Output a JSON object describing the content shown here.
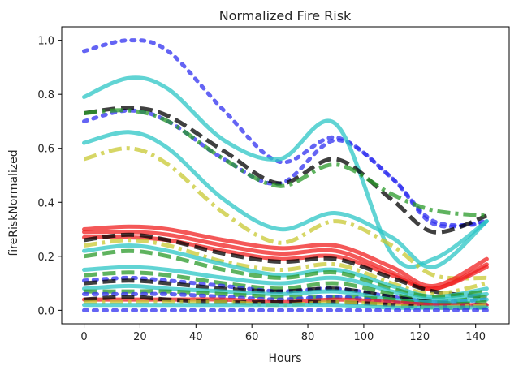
{
  "chart_data": {
    "type": "line",
    "title": "Normalized Fire Risk",
    "xlabel": "Hours",
    "ylabel": "fireRiskNormalized",
    "xlim": [
      -8,
      152
    ],
    "ylim": [
      -0.05,
      1.05
    ],
    "xticks": [
      0,
      20,
      40,
      60,
      80,
      100,
      120,
      140
    ],
    "yticks": [
      0.0,
      0.2,
      0.4,
      0.6,
      0.8,
      1.0
    ],
    "xtick_labels": [
      "0",
      "20",
      "40",
      "60",
      "80",
      "100",
      "120",
      "140"
    ],
    "ytick_labels": [
      "0.0",
      "0.2",
      "0.4",
      "0.6",
      "0.8",
      "1.0"
    ],
    "legend": false,
    "grid": false,
    "x": [
      0,
      16,
      30,
      50,
      70,
      90,
      110,
      125,
      144
    ],
    "series": [
      {
        "style": "dotted",
        "color": "#3030f0",
        "values": [
          0.96,
          1.0,
          0.96,
          0.74,
          0.55,
          0.64,
          0.49,
          0.33,
          0.32
        ]
      },
      {
        "style": "dotted",
        "color": "#3030f0",
        "values": [
          0.7,
          0.74,
          0.7,
          0.56,
          0.47,
          0.63,
          0.49,
          0.32,
          0.33
        ]
      },
      {
        "style": "solid",
        "color": "#2cc6c6",
        "values": [
          0.79,
          0.86,
          0.82,
          0.63,
          0.56,
          0.69,
          0.21,
          0.19,
          0.33
        ]
      },
      {
        "style": "solid",
        "color": "#2cc6c6",
        "values": [
          0.62,
          0.66,
          0.6,
          0.41,
          0.3,
          0.36,
          0.27,
          0.16,
          0.33
        ]
      },
      {
        "style": "dashed",
        "color": "#000000",
        "values": [
          0.73,
          0.75,
          0.72,
          0.59,
          0.47,
          0.56,
          0.41,
          0.29,
          0.35
        ]
      },
      {
        "style": "dashdot",
        "color": "#2a9a2a",
        "values": [
          0.73,
          0.74,
          0.7,
          0.56,
          0.46,
          0.54,
          0.43,
          0.37,
          0.35
        ]
      },
      {
        "style": "dashdot",
        "color": "#c8c832",
        "values": [
          0.56,
          0.6,
          0.54,
          0.36,
          0.25,
          0.33,
          0.24,
          0.13,
          0.12
        ]
      },
      {
        "style": "solid",
        "color": "#f02020",
        "values": [
          0.3,
          0.31,
          0.3,
          0.26,
          0.23,
          0.24,
          0.16,
          0.09,
          0.19
        ]
      },
      {
        "style": "solid",
        "color": "#f02020",
        "values": [
          0.29,
          0.29,
          0.28,
          0.24,
          0.21,
          0.22,
          0.14,
          0.08,
          0.17
        ]
      },
      {
        "style": "solid",
        "color": "#f02020",
        "values": [
          0.27,
          0.27,
          0.26,
          0.22,
          0.19,
          0.2,
          0.13,
          0.08,
          0.16
        ]
      },
      {
        "style": "dashed",
        "color": "#000000",
        "values": [
          0.26,
          0.28,
          0.26,
          0.21,
          0.18,
          0.19,
          0.12,
          0.07,
          0.05
        ]
      },
      {
        "style": "dashdot",
        "color": "#c8c832",
        "values": [
          0.24,
          0.26,
          0.24,
          0.18,
          0.15,
          0.17,
          0.1,
          0.06,
          0.1
        ]
      },
      {
        "style": "solid",
        "color": "#2cc6c6",
        "values": [
          0.22,
          0.24,
          0.22,
          0.17,
          0.13,
          0.15,
          0.09,
          0.05,
          0.08
        ]
      },
      {
        "style": "dashed",
        "color": "#2a9a2a",
        "values": [
          0.2,
          0.22,
          0.2,
          0.15,
          0.12,
          0.14,
          0.08,
          0.05,
          0.07
        ]
      },
      {
        "style": "solid",
        "color": "#2cc6c6",
        "values": [
          0.15,
          0.16,
          0.15,
          0.12,
          0.1,
          0.12,
          0.07,
          0.04,
          0.06
        ]
      },
      {
        "style": "dashed",
        "color": "#2a9a2a",
        "values": [
          0.13,
          0.14,
          0.13,
          0.1,
          0.08,
          0.1,
          0.06,
          0.03,
          0.05
        ]
      },
      {
        "style": "dotted",
        "color": "#3030f0",
        "values": [
          0.11,
          0.12,
          0.11,
          0.09,
          0.07,
          0.08,
          0.05,
          0.03,
          0.04
        ]
      },
      {
        "style": "dashed",
        "color": "#000000",
        "values": [
          0.1,
          0.11,
          0.1,
          0.08,
          0.07,
          0.08,
          0.05,
          0.03,
          0.02
        ]
      },
      {
        "style": "solid",
        "color": "#2cc6c6",
        "values": [
          0.08,
          0.09,
          0.08,
          0.07,
          0.06,
          0.07,
          0.04,
          0.03,
          0.04
        ]
      },
      {
        "style": "dashed",
        "color": "#2a9a2a",
        "values": [
          0.07,
          0.07,
          0.07,
          0.06,
          0.05,
          0.05,
          0.04,
          0.02,
          0.03
        ]
      },
      {
        "style": "dotted",
        "color": "#3030f0",
        "values": [
          0.06,
          0.06,
          0.06,
          0.05,
          0.04,
          0.05,
          0.03,
          0.02,
          0.02
        ]
      },
      {
        "style": "solid",
        "color": "#f02020",
        "values": [
          0.04,
          0.04,
          0.04,
          0.04,
          0.03,
          0.04,
          0.03,
          0.02,
          0.02
        ]
      },
      {
        "style": "dashed",
        "color": "#000000",
        "values": [
          0.04,
          0.05,
          0.04,
          0.03,
          0.03,
          0.03,
          0.02,
          0.01,
          0.01
        ]
      },
      {
        "style": "dashdot",
        "color": "#c8c832",
        "values": [
          0.03,
          0.03,
          0.03,
          0.03,
          0.02,
          0.03,
          0.02,
          0.01,
          0.02
        ]
      },
      {
        "style": "solid",
        "color": "#2cc6c6",
        "values": [
          0.02,
          0.02,
          0.02,
          0.02,
          0.02,
          0.02,
          0.01,
          0.01,
          0.01
        ]
      },
      {
        "style": "dotted",
        "color": "#3030f0",
        "values": [
          0.0,
          0.0,
          0.0,
          0.0,
          0.0,
          0.0,
          0.0,
          0.0,
          0.0
        ]
      }
    ]
  }
}
